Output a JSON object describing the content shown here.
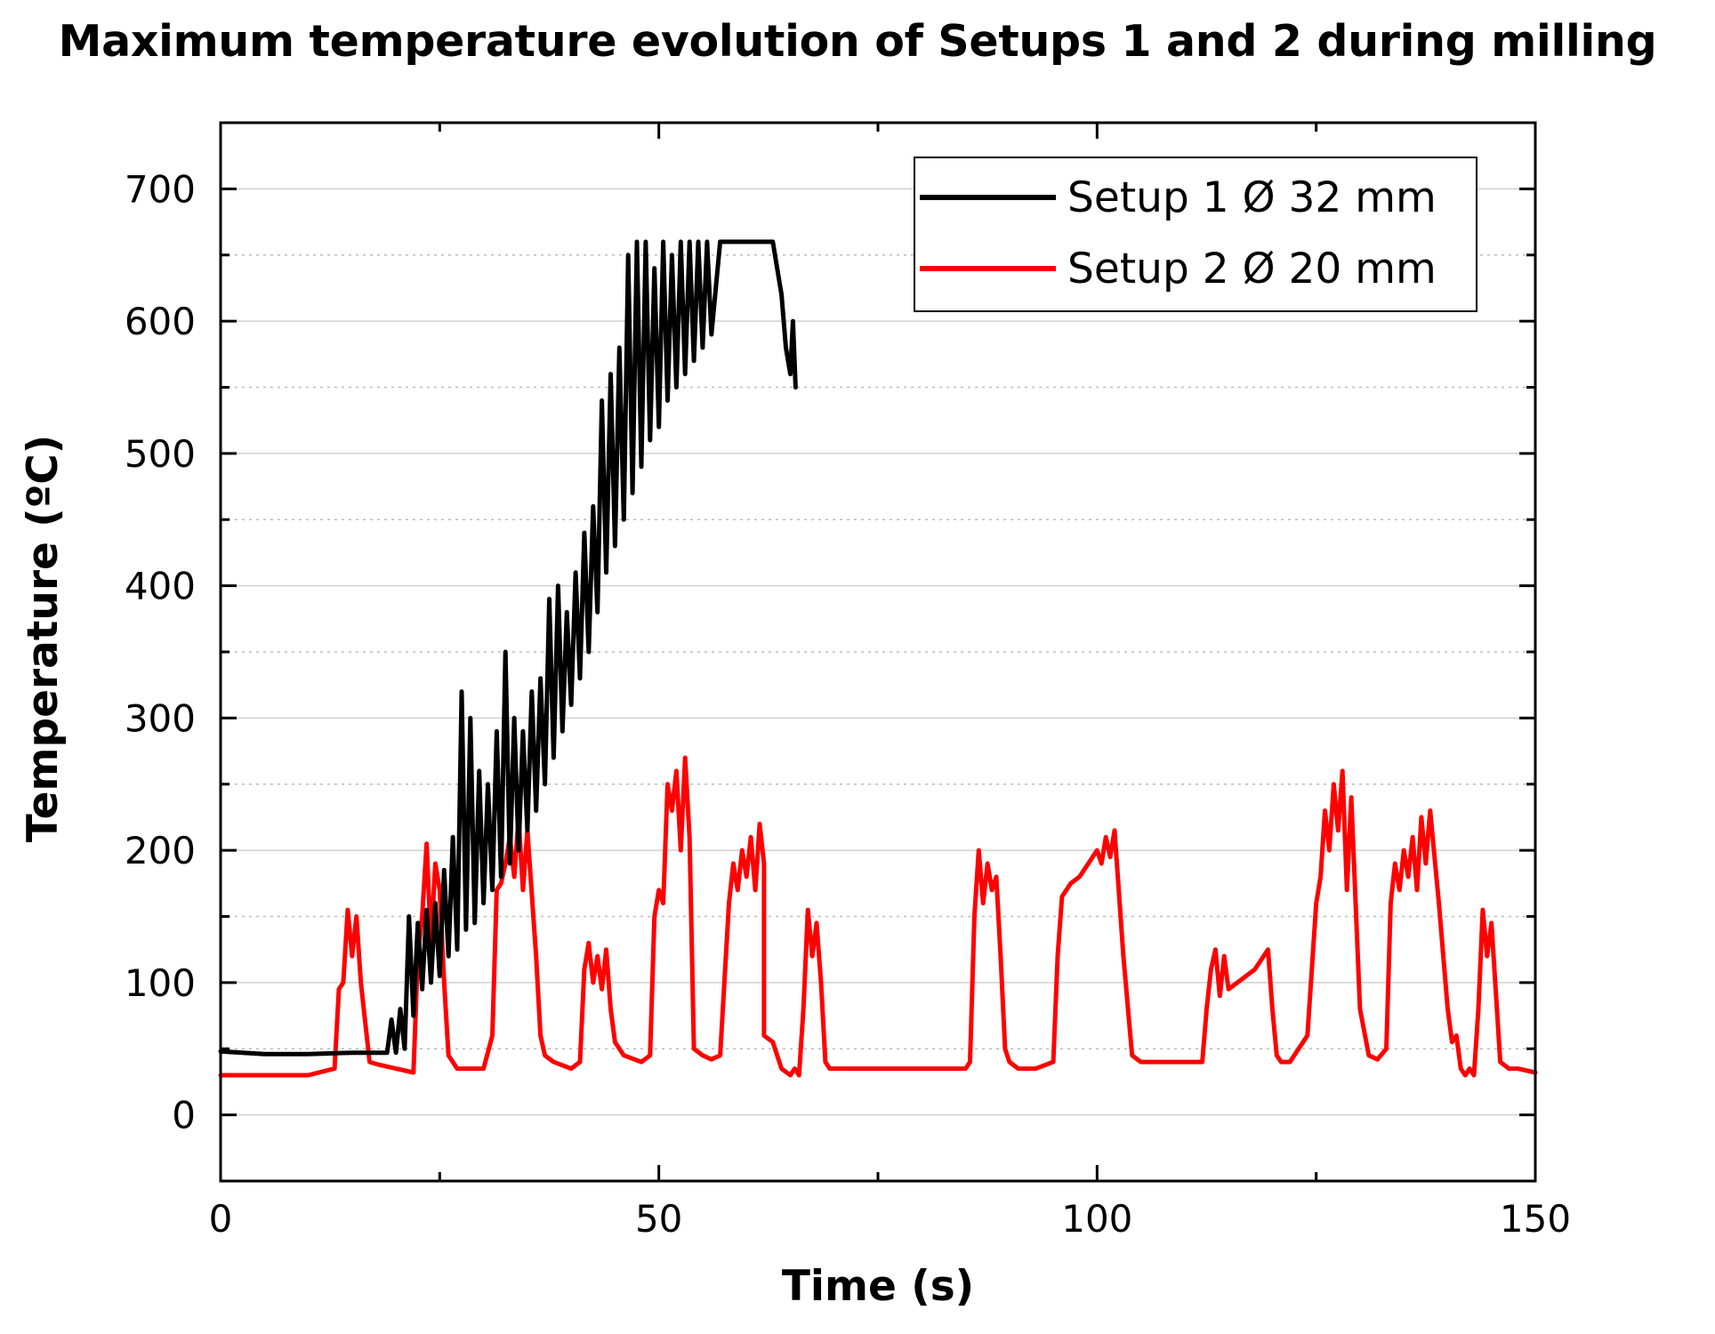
{
  "chart_data": {
    "type": "line",
    "title": "Maximum temperature evolution of Setups 1 and 2 during milling",
    "xlabel": "Time (s)",
    "ylabel": "Temperature (ºC)",
    "xlim": [
      0,
      150
    ],
    "ylim": [
      -50,
      750
    ],
    "x_ticks": [
      0,
      50,
      100,
      150
    ],
    "y_ticks": [
      0,
      100,
      200,
      300,
      400,
      500,
      600,
      700
    ],
    "grid": "horizontal (major solid, minor dotted)",
    "legend_position": "top-right",
    "colors": {
      "setup1": "#000000",
      "setup2": "#ff0000"
    },
    "series": [
      {
        "name": "Setup 1 Ø 32 mm",
        "color": "#000000",
        "x": [
          0,
          5,
          10,
          15,
          19,
          19.5,
          20,
          20.5,
          21,
          21.5,
          22,
          22.5,
          23,
          23.5,
          24,
          24.5,
          25,
          25.5,
          26,
          26.5,
          27,
          27.5,
          28,
          28.5,
          29,
          29.5,
          30,
          30.5,
          31,
          31.5,
          32,
          32.5,
          33,
          33.5,
          34,
          34.5,
          35,
          35.5,
          36,
          36.5,
          37,
          37.5,
          38,
          38.5,
          39,
          39.5,
          40,
          40.5,
          41,
          41.5,
          42,
          42.5,
          43,
          43.5,
          44,
          44.5,
          45,
          45.5,
          46,
          46.5,
          47,
          47.5,
          48,
          48.5,
          49,
          49.5,
          50,
          50.5,
          51,
          51.5,
          52,
          52.5,
          53,
          53.5,
          54,
          54.5,
          55,
          55.5,
          56,
          57,
          60,
          63,
          64,
          64.5,
          65,
          65.3,
          65.6
        ],
        "values": [
          48,
          46,
          46,
          47,
          47,
          72,
          47,
          80,
          50,
          150,
          75,
          145,
          95,
          155,
          100,
          160,
          105,
          185,
          120,
          210,
          125,
          320,
          140,
          300,
          145,
          260,
          160,
          250,
          170,
          290,
          180,
          350,
          190,
          300,
          200,
          290,
          215,
          320,
          230,
          330,
          250,
          390,
          270,
          400,
          290,
          380,
          310,
          410,
          330,
          440,
          350,
          460,
          380,
          540,
          410,
          560,
          430,
          580,
          450,
          650,
          470,
          660,
          490,
          660,
          510,
          640,
          520,
          660,
          540,
          650,
          550,
          660,
          560,
          660,
          570,
          660,
          580,
          660,
          590,
          660,
          660,
          660,
          620,
          580,
          560,
          600,
          550
        ]
      },
      {
        "name": "Setup 2 Ø 20 mm",
        "color": "#ff0000",
        "x": [
          0,
          5,
          10,
          13,
          13.5,
          14,
          14.5,
          15,
          15.5,
          16,
          17,
          18,
          20,
          22,
          22.5,
          23,
          23.5,
          24,
          24.5,
          25,
          25.5,
          26,
          27,
          28,
          30,
          31,
          31.5,
          32,
          32.5,
          33,
          33.5,
          34,
          34.5,
          35,
          36,
          36.5,
          37,
          38,
          40,
          41,
          41.5,
          42,
          42.5,
          43,
          43.5,
          44,
          44.5,
          45,
          46,
          48,
          49,
          49.5,
          50,
          50.5,
          51,
          51.5,
          52,
          52.5,
          53,
          53.5,
          54,
          55,
          56,
          57,
          58,
          58.5,
          59,
          59.5,
          60,
          60.5,
          61,
          61.5,
          62,
          62,
          63,
          63.5,
          64,
          65,
          65.5,
          66,
          66.5,
          67,
          67.5,
          68,
          68.5,
          69,
          69.5,
          70,
          72,
          80,
          85,
          85.5,
          86,
          86.5,
          87,
          87.5,
          88,
          88.5,
          89,
          89.5,
          90,
          91,
          93,
          95,
          95.5,
          96,
          97,
          98,
          99,
          100,
          100.5,
          101,
          101.5,
          102,
          103,
          104,
          105,
          110,
          112,
          112.5,
          113,
          113.5,
          114,
          114.5,
          115,
          116,
          118,
          119.5,
          120,
          120.5,
          121,
          122,
          124,
          125,
          125.5,
          126,
          126.5,
          127,
          127.5,
          128,
          128.5,
          129,
          129.5,
          130,
          131,
          132,
          133,
          133.5,
          134,
          134.5,
          135,
          135.5,
          136,
          136.5,
          137,
          137.5,
          138,
          139,
          140,
          140.5,
          141,
          141.5,
          142,
          142.5,
          143,
          143.5,
          144,
          144.5,
          145,
          146,
          147,
          148,
          150
        ],
        "values": [
          30,
          30,
          30,
          35,
          95,
          100,
          155,
          120,
          150,
          100,
          40,
          38,
          35,
          32,
          120,
          150,
          205,
          130,
          190,
          170,
          100,
          45,
          35,
          35,
          35,
          60,
          170,
          175,
          190,
          210,
          180,
          225,
          170,
          215,
          120,
          60,
          45,
          40,
          35,
          40,
          110,
          130,
          100,
          120,
          95,
          125,
          80,
          55,
          45,
          40,
          45,
          150,
          170,
          160,
          250,
          230,
          260,
          200,
          270,
          210,
          50,
          45,
          42,
          45,
          160,
          190,
          170,
          200,
          180,
          210,
          170,
          220,
          190,
          60,
          55,
          45,
          35,
          30,
          35,
          30,
          80,
          155,
          120,
          145,
          100,
          40,
          35,
          35,
          35,
          35,
          35,
          40,
          150,
          200,
          160,
          190,
          170,
          180,
          120,
          50,
          40,
          35,
          35,
          40,
          120,
          165,
          175,
          180,
          190,
          200,
          190,
          210,
          195,
          215,
          120,
          45,
          40,
          40,
          40,
          80,
          110,
          125,
          90,
          120,
          95,
          100,
          110,
          125,
          80,
          45,
          40,
          40,
          60,
          160,
          180,
          230,
          200,
          250,
          215,
          260,
          170,
          240,
          160,
          80,
          45,
          42,
          50,
          160,
          190,
          170,
          200,
          180,
          210,
          170,
          225,
          190,
          230,
          160,
          80,
          55,
          60,
          35,
          30,
          35,
          30,
          80,
          155,
          120,
          145,
          40,
          35,
          35,
          32
        ]
      }
    ]
  }
}
